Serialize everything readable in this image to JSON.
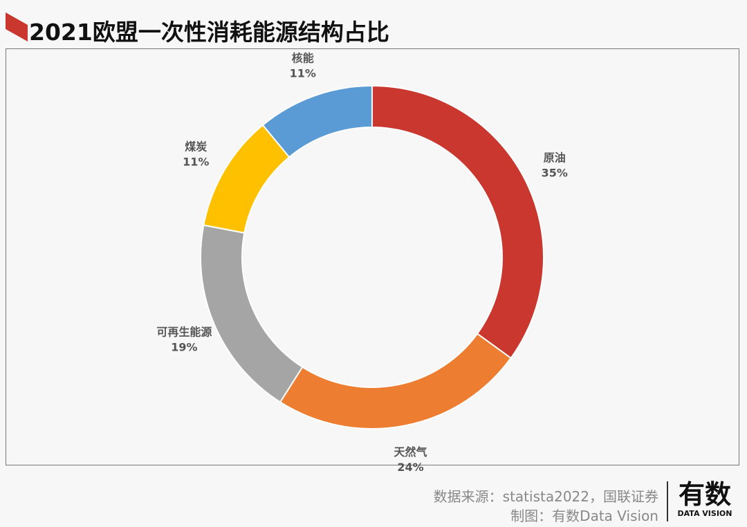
{
  "header": {
    "title": "2021欧盟一次性消耗能源结构占比"
  },
  "chart_data": {
    "type": "pie",
    "donut": true,
    "title": "2021欧盟一次性消耗能源结构占比",
    "categories": [
      "原油",
      "天然气",
      "可再生能源",
      "煤炭",
      "核能"
    ],
    "values": [
      35,
      24,
      19,
      11,
      11
    ],
    "labels": [
      "35%",
      "24%",
      "19%",
      "11%",
      "11%"
    ],
    "colors": [
      "#c9372f",
      "#ed7d31",
      "#a5a5a5",
      "#ffc000",
      "#5b9bd5"
    ],
    "start": "top",
    "direction": "clockwise",
    "legend": "none"
  },
  "footer": {
    "source": "数据来源：statista2022，国联证券",
    "credit": "制图：有数Data Vision"
  },
  "logo": {
    "main": "有数",
    "sub": "DATA VISION"
  },
  "colors": {
    "accent": "#c9372f"
  }
}
